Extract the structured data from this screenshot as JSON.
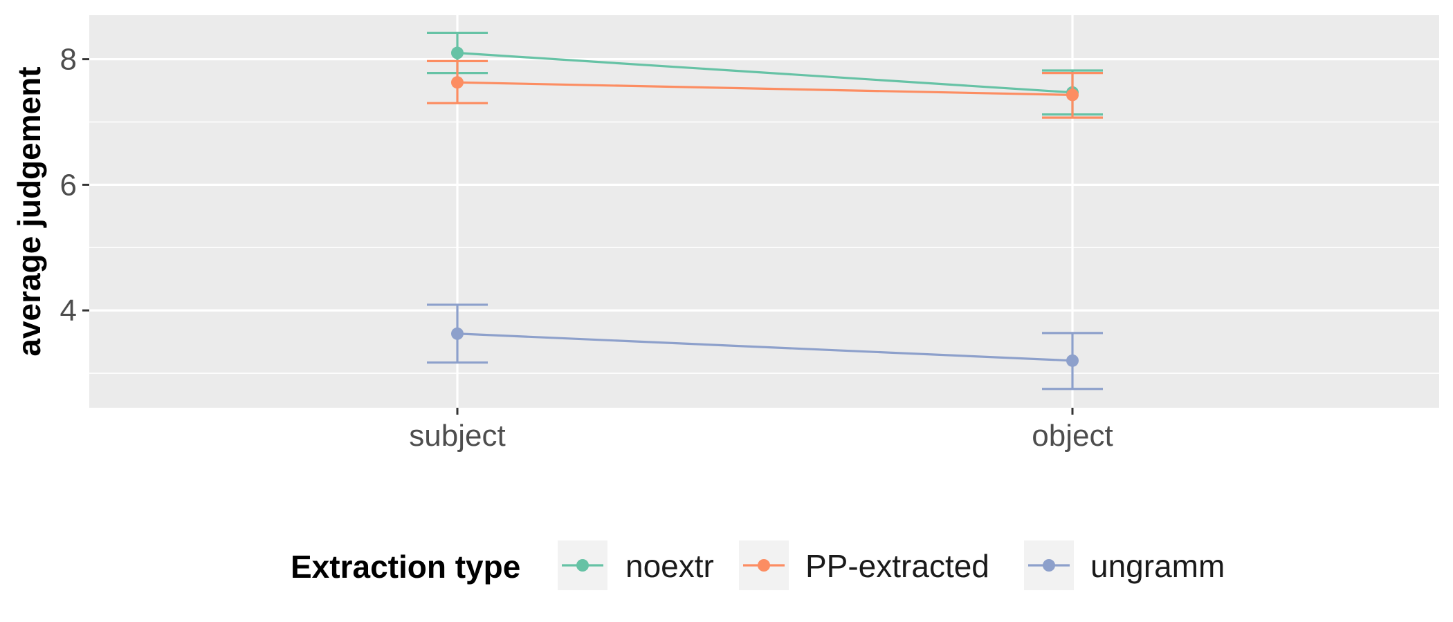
{
  "chart_data": {
    "type": "line",
    "title": "",
    "xlabel": "",
    "ylabel": "average judgement",
    "categories": [
      "subject",
      "object"
    ],
    "ylim": [
      2.45,
      8.7
    ],
    "yticks": [
      4,
      6,
      8
    ],
    "yticks_minor": [
      3,
      5,
      7
    ],
    "grid": true,
    "legend": {
      "title": "Extraction type",
      "position": "bottom"
    },
    "series": [
      {
        "name": "noextr",
        "color": "#66c2a5",
        "values": [
          8.1,
          7.47
        ],
        "err_low": [
          7.78,
          7.12
        ],
        "err_high": [
          8.42,
          7.82
        ]
      },
      {
        "name": "PP-extracted",
        "color": "#fc8d62",
        "values": [
          7.63,
          7.43
        ],
        "err_low": [
          7.3,
          7.07
        ],
        "err_high": [
          7.97,
          7.78
        ]
      },
      {
        "name": "ungramm",
        "color": "#8da0cb",
        "values": [
          3.63,
          3.2
        ],
        "err_low": [
          3.17,
          2.75
        ],
        "err_high": [
          4.09,
          3.64
        ]
      }
    ]
  }
}
